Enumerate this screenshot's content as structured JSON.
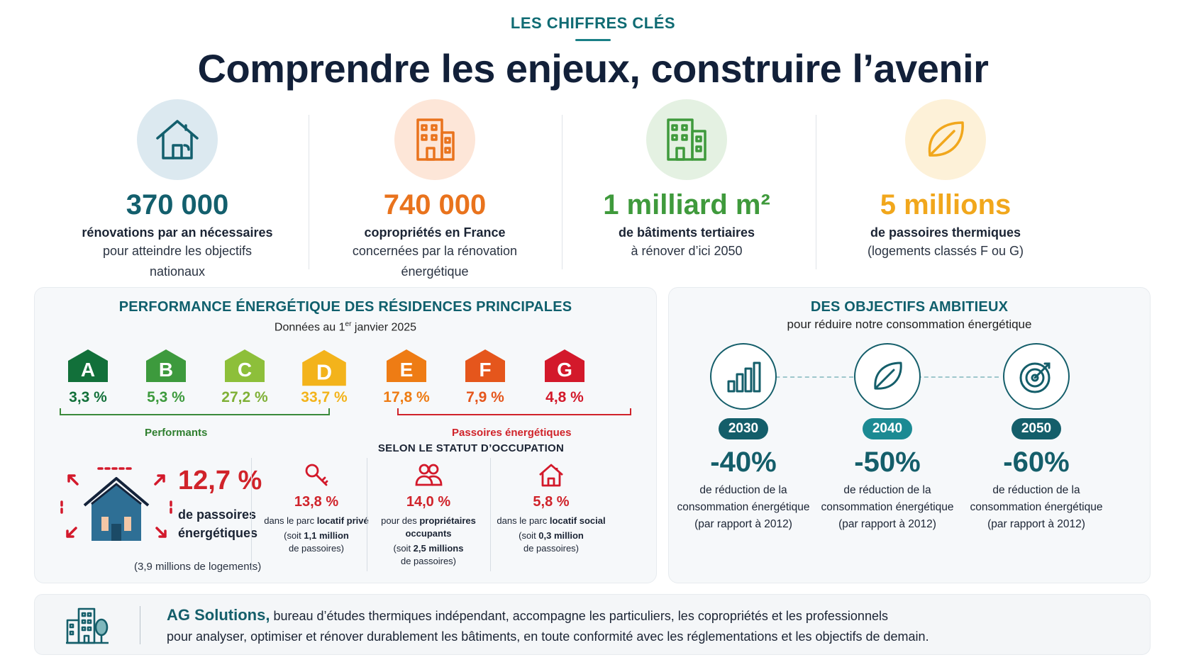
{
  "header": {
    "eyebrow": "LES CHIFFRES CLÉS",
    "title": "Comprendre les enjeux, construire l’avenir"
  },
  "stats": [
    {
      "icon": "house-icon",
      "color": "#135f6d",
      "value": "370 000",
      "bold": "rénovations par an nécessaires",
      "desc1": "pour atteindre les objectifs",
      "desc2": "nationaux"
    },
    {
      "icon": "building-icon",
      "color": "#e9731d",
      "value": "740 000",
      "bold": "copropriétés en France",
      "desc1": "concernées par la rénovation",
      "desc2": "énergétique"
    },
    {
      "icon": "office-building-icon",
      "color": "#3f9a3c",
      "value": "1 milliard m²",
      "bold": "de bâtiments tertiaires",
      "desc1": "à rénover d’ici 2050",
      "desc2": ""
    },
    {
      "icon": "leaf-icon",
      "color": "#f1a71c",
      "value": "5 millions",
      "bold": "de passoires thermiques",
      "desc1": "(logements classés F ou G)",
      "desc2": ""
    }
  ],
  "performance": {
    "title": "PERFORMANCE ÉNERGÉTIQUE DES RÉSIDENCES PRINCIPALES",
    "subtitle_pre": "Données au 1",
    "subtitle_sup": "er",
    "subtitle_post": " janvier 2025",
    "classes": [
      {
        "letter": "A",
        "pct": "3,3 %",
        "color": "#12703a"
      },
      {
        "letter": "B",
        "pct": "5,3 %",
        "color": "#3d9a3d"
      },
      {
        "letter": "C",
        "pct": "27,2 %",
        "color": "#8dbf3a"
      },
      {
        "letter": "D",
        "pct": "33,7 %",
        "color": "#f3b31b"
      },
      {
        "letter": "E",
        "pct": "17,8 %",
        "color": "#ee7c14"
      },
      {
        "letter": "F",
        "pct": "7,9 %",
        "color": "#e5561c"
      },
      {
        "letter": "G",
        "pct": "4,8 %",
        "color": "#d3192b"
      }
    ],
    "label_performants": "Performants",
    "label_passoires": "Passoires énergétiques",
    "big_pct": "12,7 %",
    "big_label": "de passoires énergétiques",
    "big_note": "(3,9 millions de logements)",
    "statut_title": "SELON LE STATUT D’OCCUPATION",
    "statut": [
      {
        "icon": "key-icon",
        "pct": "13,8 %",
        "t_pre": "dans le parc ",
        "t_bold": "locatif privé",
        "t_post": "",
        "s_pre": "(soit ",
        "s_bold": "1,1 million",
        "s_post": "de passoires)"
      },
      {
        "icon": "owners-icon",
        "pct": "14,0 %",
        "t_pre": "pour des ",
        "t_bold": "propriétaires occupants",
        "t_post": "",
        "s_pre": "(soit ",
        "s_bold": "2,5 millions",
        "s_post": "de passoires)"
      },
      {
        "icon": "social-house-icon",
        "pct": "5,8 %",
        "t_pre": "dans le parc ",
        "t_bold": "locatif social",
        "t_post": "",
        "s_pre": "(soit ",
        "s_bold": "0,3 million",
        "s_post": "de passoires)"
      }
    ]
  },
  "objectives": {
    "title": "DES OBJECTIFS AMBITIEUX",
    "subtitle": "pour réduire notre consommation énergétique",
    "items": [
      {
        "icon": "bar-chart-icon",
        "year": "2030",
        "year_color": "#145e6a",
        "pct": "-40%",
        "d1": "de réduction de la",
        "d2": "consommation énergétique",
        "d3": "(par rapport à 2012)"
      },
      {
        "icon": "leaf-icon",
        "year": "2040",
        "year_color": "#1c8a93",
        "pct": "-50%",
        "d1": "de réduction de la",
        "d2": "consommation énergétique",
        "d3": "(par rapport à 2012)"
      },
      {
        "icon": "target-icon",
        "year": "2050",
        "year_color": "#145e6a",
        "pct": "-60%",
        "d1": "de réduction de la",
        "d2": "consommation énergétique",
        "d3": "(par rapport à 2012)"
      }
    ]
  },
  "footer": {
    "brand": "AG Solutions,",
    "line1": " bureau d’études thermiques indépendant, accompagne les particuliers, les copropriétés et les professionnels",
    "line2": "pour analyser, optimiser et rénover durablement les bâtiments, en toute conformité avec les réglementations et les objectifs de demain."
  }
}
